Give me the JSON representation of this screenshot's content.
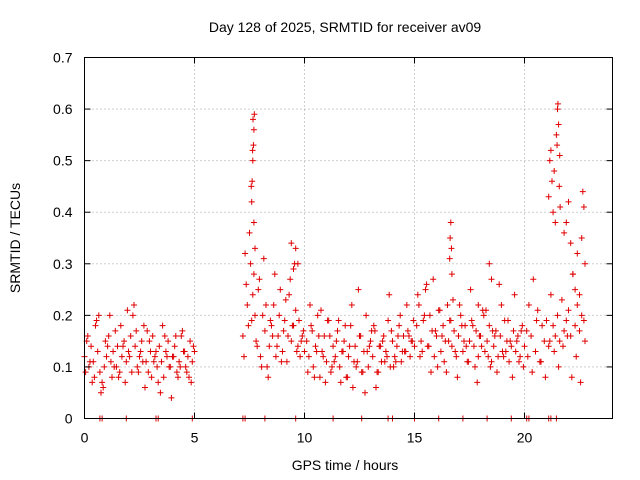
{
  "chart_data": {
    "type": "scatter",
    "title": "Day 128 of 2025, SRMTID for receiver av09",
    "xlabel": "GPS time / hours",
    "ylabel": "SRMTID / TECUs",
    "xlim": [
      0,
      24
    ],
    "ylim": [
      0,
      0.7
    ],
    "xticks": [
      0,
      5,
      10,
      15,
      20
    ],
    "yticks": [
      0,
      0.1,
      0.2,
      0.3,
      0.4,
      0.5,
      0.6,
      0.7
    ],
    "xtick_labels": [
      "0",
      "5",
      "10",
      "15",
      "20"
    ],
    "ytick_labels": [
      "0",
      "0.1",
      "0.2",
      "0.3",
      "0.4",
      "0.5",
      "0.6",
      "0.7"
    ],
    "grid": true,
    "marker": "+",
    "color": "#e00000",
    "series": [
      {
        "name": "SRMTID",
        "x": [
          0.0,
          0.1,
          0.2,
          0.3,
          0.4,
          0.5,
          0.6,
          0.7,
          0.8,
          0.9,
          1.0,
          1.1,
          1.2,
          1.3,
          1.4,
          1.5,
          1.6,
          1.7,
          1.8,
          1.9,
          2.0,
          2.1,
          2.2,
          2.3,
          2.4,
          2.5,
          2.6,
          2.7,
          2.8,
          2.9,
          3.0,
          3.1,
          3.2,
          3.3,
          3.4,
          3.5,
          3.6,
          3.7,
          3.8,
          3.9,
          4.0,
          4.1,
          4.2,
          4.3,
          4.4,
          4.5,
          4.6,
          4.7,
          4.8,
          4.9,
          5.0,
          0.05,
          0.25,
          0.45,
          0.65,
          0.85,
          1.05,
          1.25,
          1.45,
          1.65,
          1.85,
          2.05,
          2.25,
          2.45,
          2.65,
          2.85,
          3.05,
          3.25,
          3.45,
          3.65,
          3.85,
          4.05,
          4.25,
          4.45,
          4.65,
          4.85,
          0.15,
          0.35,
          0.55,
          0.75,
          0.95,
          1.15,
          1.35,
          1.55,
          1.75,
          1.95,
          2.15,
          2.35,
          2.55,
          2.75,
          2.95,
          3.15,
          3.35,
          3.55,
          3.75,
          3.95,
          4.15,
          4.35,
          4.55,
          4.75,
          4.95,
          7.2,
          7.3,
          7.4,
          7.5,
          7.6,
          7.7,
          7.8,
          7.9,
          8.0,
          8.1,
          8.2,
          8.3,
          8.4,
          8.5,
          8.6,
          8.7,
          8.8,
          8.9,
          9.0,
          9.1,
          9.2,
          9.3,
          9.4,
          9.5,
          9.6,
          9.7,
          9.8,
          9.9,
          10.0,
          7.25,
          7.35,
          7.45,
          7.55,
          7.65,
          7.75,
          7.85,
          7.95,
          8.05,
          8.15,
          8.25,
          8.35,
          8.45,
          8.55,
          8.65,
          8.75,
          8.85,
          8.95,
          9.05,
          9.15,
          9.25,
          9.35,
          9.45,
          9.55,
          9.65,
          9.75,
          9.85,
          9.95,
          7.6,
          7.65,
          7.7,
          7.62,
          7.68,
          7.66,
          7.72,
          7.58,
          7.64,
          7.7,
          7.75,
          9.4,
          9.5,
          9.6,
          9.7,
          10.1,
          10.2,
          10.3,
          10.4,
          10.5,
          10.6,
          10.7,
          10.8,
          10.9,
          11.0,
          11.1,
          11.2,
          11.3,
          11.4,
          11.5,
          11.6,
          11.7,
          11.8,
          11.9,
          12.0,
          12.1,
          12.2,
          12.3,
          12.4,
          12.5,
          12.6,
          12.7,
          12.8,
          12.9,
          13.0,
          13.1,
          13.2,
          13.3,
          13.4,
          13.5,
          13.6,
          13.7,
          13.8,
          13.9,
          14.0,
          14.1,
          14.2,
          14.3,
          14.4,
          14.5,
          14.6,
          14.7,
          14.8,
          14.9,
          15.0,
          10.15,
          10.35,
          10.55,
          10.75,
          10.95,
          11.15,
          11.35,
          11.55,
          11.75,
          11.95,
          12.15,
          12.35,
          12.55,
          12.75,
          12.95,
          13.15,
          13.35,
          13.55,
          13.75,
          13.95,
          14.15,
          14.35,
          14.55,
          14.75,
          14.95,
          10.25,
          10.45,
          10.65,
          10.85,
          11.05,
          11.25,
          11.45,
          11.65,
          11.85,
          12.05,
          12.25,
          12.45,
          12.65,
          12.85,
          13.05,
          13.25,
          13.45,
          13.65,
          13.85,
          14.05,
          14.25,
          14.45,
          14.65,
          14.85,
          15.1,
          15.2,
          15.3,
          15.4,
          15.5,
          15.6,
          15.7,
          15.8,
          15.9,
          16.0,
          16.1,
          16.2,
          16.3,
          16.4,
          16.5,
          16.6,
          16.7,
          16.8,
          16.9,
          17.0,
          17.1,
          17.2,
          17.3,
          17.4,
          17.5,
          17.6,
          17.7,
          17.8,
          17.9,
          18.0,
          18.1,
          18.2,
          18.3,
          18.4,
          18.5,
          18.6,
          18.7,
          18.8,
          18.9,
          19.0,
          19.1,
          19.2,
          19.3,
          19.4,
          19.5,
          19.6,
          19.7,
          19.8,
          19.9,
          20.0,
          15.15,
          15.35,
          15.55,
          15.75,
          15.95,
          16.15,
          16.35,
          16.55,
          16.75,
          16.95,
          17.15,
          17.35,
          17.55,
          17.75,
          17.95,
          18.15,
          18.35,
          18.55,
          18.75,
          18.95,
          19.15,
          19.35,
          19.55,
          19.75,
          19.95,
          15.25,
          15.45,
          15.65,
          15.85,
          16.05,
          16.25,
          16.45,
          16.65,
          16.85,
          17.05,
          17.25,
          17.45,
          17.65,
          17.85,
          18.05,
          18.25,
          18.45,
          18.65,
          18.85,
          19.05,
          19.25,
          19.45,
          19.65,
          19.85,
          16.6,
          16.62,
          16.65,
          16.68,
          16.7,
          17.9,
          18.4,
          18.5,
          20.1,
          20.2,
          20.3,
          20.4,
          20.5,
          20.6,
          20.7,
          20.8,
          20.9,
          21.0,
          21.1,
          21.2,
          21.3,
          21.4,
          21.5,
          21.6,
          21.7,
          21.8,
          21.9,
          22.0,
          22.1,
          22.2,
          22.3,
          22.4,
          22.5,
          22.6,
          22.7,
          20.15,
          20.35,
          20.55,
          20.75,
          20.95,
          21.15,
          21.35,
          21.55,
          21.75,
          21.95,
          22.15,
          22.35,
          22.55,
          22.75,
          21.1,
          21.15,
          21.2,
          21.25,
          21.3,
          21.35,
          21.4,
          21.45,
          21.5,
          21.55,
          21.6,
          21.52,
          21.58,
          21.48,
          21.62,
          21.8,
          21.9,
          22.0,
          22.1,
          22.2,
          22.3,
          22.4,
          22.5,
          22.6,
          22.7,
          22.65,
          22.75,
          0.7,
          0.8,
          1.9,
          3.25,
          3.35,
          4.9,
          7.2,
          7.3,
          8.2,
          9.6,
          11.3,
          12.6,
          13.8,
          14.0,
          15.0,
          16.1,
          17.2,
          18.3,
          19.4,
          20.1,
          20.2,
          21.1,
          21.2,
          21.45
        ],
        "y": [
          0.12,
          0.15,
          0.1,
          0.14,
          0.11,
          0.18,
          0.13,
          0.09,
          0.07,
          0.1,
          0.12,
          0.16,
          0.11,
          0.13,
          0.17,
          0.14,
          0.09,
          0.12,
          0.15,
          0.11,
          0.13,
          0.16,
          0.2,
          0.14,
          0.1,
          0.12,
          0.15,
          0.18,
          0.11,
          0.09,
          0.13,
          0.16,
          0.12,
          0.1,
          0.14,
          0.11,
          0.08,
          0.13,
          0.15,
          0.1,
          0.12,
          0.14,
          0.09,
          0.11,
          0.16,
          0.13,
          0.1,
          0.12,
          0.15,
          0.11,
          0.13,
          0.09,
          0.11,
          0.08,
          0.2,
          0.06,
          0.14,
          0.08,
          0.1,
          0.18,
          0.07,
          0.12,
          0.22,
          0.09,
          0.11,
          0.17,
          0.08,
          0.13,
          0.05,
          0.16,
          0.1,
          0.12,
          0.08,
          0.17,
          0.09,
          0.07,
          0.16,
          0.07,
          0.19,
          0.05,
          0.15,
          0.2,
          0.1,
          0.08,
          0.14,
          0.21,
          0.09,
          0.17,
          0.13,
          0.06,
          0.15,
          0.11,
          0.07,
          0.18,
          0.12,
          0.04,
          0.16,
          0.1,
          0.13,
          0.08,
          0.14,
          0.16,
          0.32,
          0.22,
          0.36,
          0.19,
          0.28,
          0.15,
          0.25,
          0.12,
          0.2,
          0.17,
          0.1,
          0.14,
          0.18,
          0.22,
          0.12,
          0.16,
          0.25,
          0.13,
          0.19,
          0.11,
          0.24,
          0.15,
          0.18,
          0.21,
          0.14,
          0.12,
          0.16,
          0.13,
          0.12,
          0.26,
          0.18,
          0.3,
          0.24,
          0.2,
          0.14,
          0.27,
          0.1,
          0.31,
          0.22,
          0.08,
          0.19,
          0.16,
          0.28,
          0.14,
          0.2,
          0.11,
          0.17,
          0.23,
          0.16,
          0.27,
          0.18,
          0.3,
          0.13,
          0.19,
          0.15,
          0.17,
          0.42,
          0.5,
          0.56,
          0.46,
          0.53,
          0.58,
          0.59,
          0.45,
          0.52,
          0.38,
          0.33,
          0.34,
          0.29,
          0.33,
          0.3,
          0.15,
          0.12,
          0.18,
          0.1,
          0.14,
          0.2,
          0.08,
          0.13,
          0.16,
          0.11,
          0.19,
          0.09,
          0.14,
          0.12,
          0.17,
          0.1,
          0.13,
          0.15,
          0.08,
          0.12,
          0.18,
          0.06,
          0.14,
          0.11,
          0.16,
          0.09,
          0.13,
          0.2,
          0.1,
          0.15,
          0.12,
          0.17,
          0.09,
          0.14,
          0.11,
          0.16,
          0.13,
          0.19,
          0.1,
          0.15,
          0.12,
          0.14,
          0.18,
          0.11,
          0.16,
          0.13,
          0.17,
          0.12,
          0.15,
          0.14,
          0.09,
          0.17,
          0.13,
          0.21,
          0.07,
          0.16,
          0.11,
          0.19,
          0.13,
          0.08,
          0.22,
          0.1,
          0.16,
          0.05,
          0.14,
          0.18,
          0.09,
          0.15,
          0.12,
          0.17,
          0.11,
          0.2,
          0.13,
          0.16,
          0.19,
          0.22,
          0.08,
          0.16,
          0.12,
          0.19,
          0.1,
          0.15,
          0.07,
          0.18,
          0.14,
          0.11,
          0.25,
          0.09,
          0.13,
          0.17,
          0.06,
          0.14,
          0.11,
          0.24,
          0.1,
          0.16,
          0.13,
          0.22,
          0.15,
          0.18,
          0.22,
          0.15,
          0.19,
          0.25,
          0.14,
          0.2,
          0.17,
          0.12,
          0.16,
          0.21,
          0.13,
          0.18,
          0.15,
          0.22,
          0.19,
          0.14,
          0.17,
          0.12,
          0.16,
          0.2,
          0.13,
          0.18,
          0.11,
          0.15,
          0.19,
          0.14,
          0.17,
          0.12,
          0.16,
          0.21,
          0.13,
          0.15,
          0.18,
          0.11,
          0.14,
          0.17,
          0.12,
          0.16,
          0.13,
          0.19,
          0.15,
          0.11,
          0.14,
          0.17,
          0.13,
          0.16,
          0.12,
          0.18,
          0.14,
          0.24,
          0.13,
          0.26,
          0.09,
          0.17,
          0.21,
          0.11,
          0.15,
          0.23,
          0.08,
          0.18,
          0.14,
          0.25,
          0.1,
          0.16,
          0.2,
          0.12,
          0.17,
          0.09,
          0.22,
          0.13,
          0.15,
          0.24,
          0.11,
          0.1,
          0.12,
          0.2,
          0.14,
          0.27,
          0.1,
          0.16,
          0.09,
          0.19,
          0.13,
          0.22,
          0.15,
          0.11,
          0.18,
          0.07,
          0.14,
          0.21,
          0.1,
          0.16,
          0.26,
          0.12,
          0.19,
          0.08,
          0.15,
          0.17,
          0.31,
          0.35,
          0.38,
          0.33,
          0.28,
          0.22,
          0.3,
          0.27,
          0.17,
          0.22,
          0.16,
          0.27,
          0.13,
          0.21,
          0.11,
          0.18,
          0.15,
          0.19,
          0.14,
          0.24,
          0.18,
          0.16,
          0.2,
          0.15,
          0.23,
          0.17,
          0.19,
          0.21,
          0.16,
          0.28,
          0.18,
          0.22,
          0.17,
          0.2,
          0.19,
          0.12,
          0.09,
          0.19,
          0.11,
          0.08,
          0.15,
          0.13,
          0.1,
          0.14,
          0.16,
          0.08,
          0.12,
          0.07,
          0.15,
          0.43,
          0.5,
          0.52,
          0.46,
          0.4,
          0.48,
          0.38,
          0.55,
          0.6,
          0.57,
          0.51,
          0.61,
          0.45,
          0.53,
          0.41,
          0.36,
          0.38,
          0.42,
          0.34,
          0.28,
          0.25,
          0.32,
          0.24,
          0.35,
          0.41,
          0.44,
          0.3,
          0,
          0,
          0,
          0,
          0,
          0,
          0,
          0,
          0,
          0,
          0,
          0,
          0,
          0,
          0,
          0,
          0,
          0,
          0,
          0,
          0,
          0,
          0,
          0
        ]
      }
    ]
  }
}
